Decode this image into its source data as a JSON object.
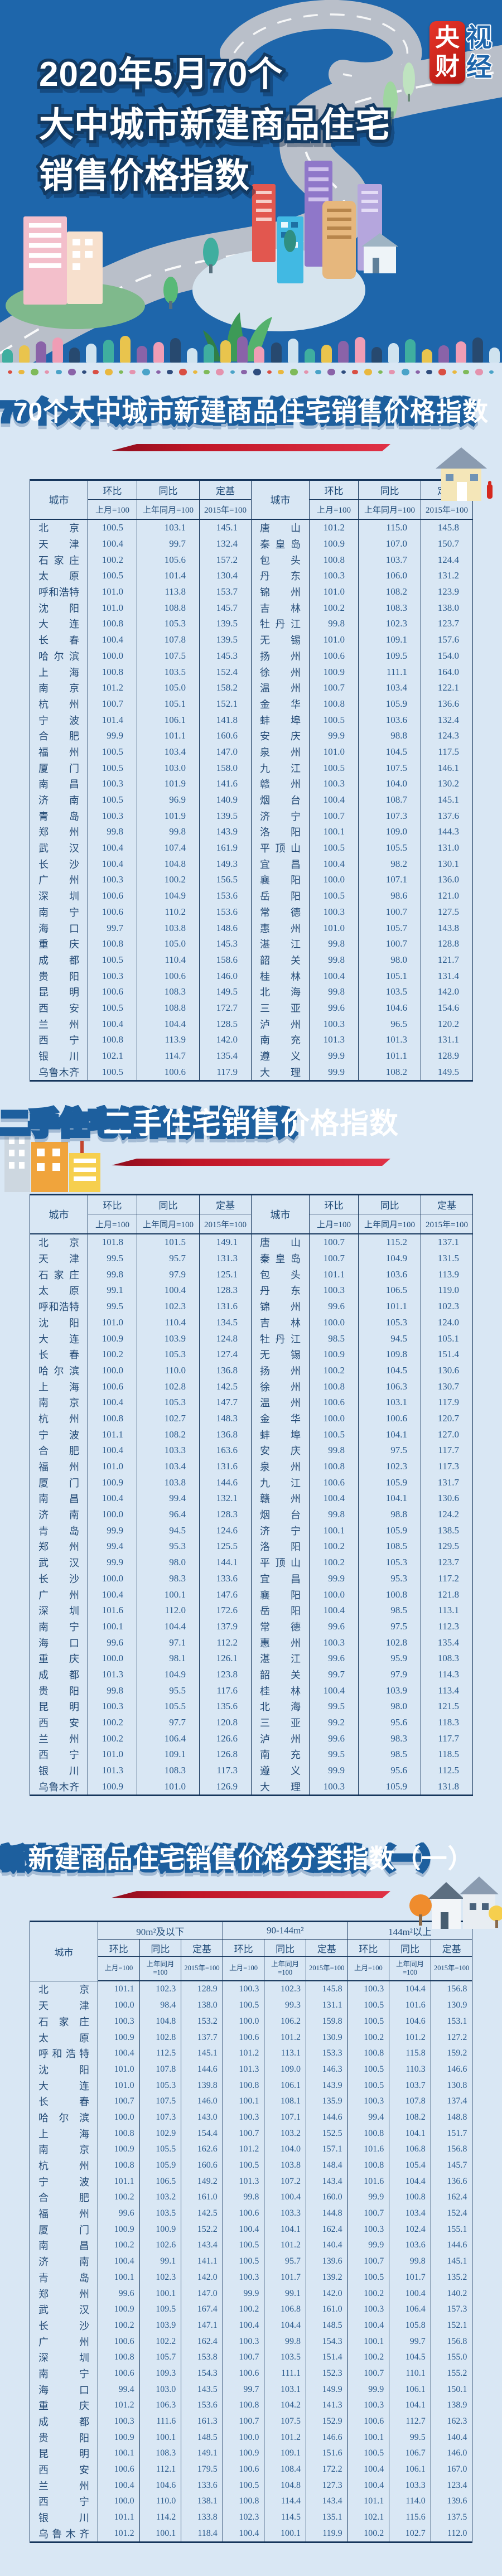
{
  "header": {
    "title_lines": [
      "2020年5月70个",
      "大中城市新建商品住宅",
      "销售价格指数"
    ],
    "logo": {
      "solid": [
        "央",
        "财"
      ],
      "outline": [
        "视",
        "经"
      ]
    }
  },
  "table_headers": {
    "city": "城市",
    "mom": "环比",
    "mom_sub": "上月=100",
    "yoy": "同比",
    "yoy_sub": "上年同月=100",
    "base": "定基",
    "base_sub": "2015年=100"
  },
  "sections": {
    "s1": {
      "title": "70个大中城市新建商品住宅销售价格指数"
    },
    "s2": {
      "title": "二手住宅销售价格指数"
    },
    "s3": {
      "title": "新建商品住宅销售价格分类指数（一）",
      "groups": [
        "90m²及以下",
        "90-144m²",
        "144m²以上"
      ]
    }
  },
  "decor": {
    "page_bg": "#d9e7f4",
    "header_blue": "#1e66ab",
    "navy": "#16365c",
    "accent_red": "#c01627",
    "road_gray": "#b9bfc9",
    "tree_colors": [
      "#3fae9f",
      "#e9c44d",
      "#8a63a8",
      "#ef9db5",
      "#27496f",
      "#cfe3ef"
    ],
    "dot_colors": [
      "#d94f43",
      "#e9b83f",
      "#7fba5a",
      "#e493ae",
      "#4aa3c8",
      "#8a63a8",
      "#2f4d7e"
    ]
  },
  "tables": {
    "t1_rows": [
      [
        "北京",
        "100.5",
        "103.1",
        "145.1",
        "唐山",
        "101.2",
        "115.0",
        "145.8"
      ],
      [
        "天津",
        "100.4",
        "99.7",
        "132.4",
        "秦皇岛",
        "100.9",
        "107.0",
        "150.7"
      ],
      [
        "石家庄",
        "100.2",
        "105.6",
        "157.2",
        "包头",
        "100.8",
        "103.7",
        "124.4"
      ],
      [
        "太原",
        "100.5",
        "101.4",
        "130.4",
        "丹东",
        "100.3",
        "106.0",
        "131.2"
      ],
      [
        "呼和浩特",
        "101.0",
        "113.8",
        "153.7",
        "锦州",
        "101.0",
        "108.2",
        "123.9"
      ],
      [
        "沈阳",
        "101.0",
        "108.8",
        "145.7",
        "吉林",
        "100.2",
        "108.3",
        "138.0"
      ],
      [
        "大连",
        "100.8",
        "105.3",
        "139.5",
        "牡丹江",
        "99.8",
        "102.3",
        "123.7"
      ],
      [
        "长春",
        "100.4",
        "107.8",
        "139.5",
        "无锡",
        "101.0",
        "109.1",
        "157.6"
      ],
      [
        "哈尔滨",
        "100.0",
        "107.5",
        "145.3",
        "扬州",
        "100.6",
        "109.5",
        "154.0"
      ],
      [
        "上海",
        "100.8",
        "103.5",
        "152.4",
        "徐州",
        "100.9",
        "111.1",
        "164.0"
      ],
      [
        "南京",
        "101.2",
        "105.0",
        "158.2",
        "温州",
        "100.7",
        "103.4",
        "122.1"
      ],
      [
        "杭州",
        "100.7",
        "105.1",
        "152.1",
        "金华",
        "100.8",
        "105.9",
        "136.6"
      ],
      [
        "宁波",
        "101.4",
        "106.1",
        "141.8",
        "蚌埠",
        "100.5",
        "103.6",
        "132.4"
      ],
      [
        "合肥",
        "99.9",
        "101.1",
        "160.6",
        "安庆",
        "99.9",
        "98.8",
        "124.3"
      ],
      [
        "福州",
        "100.5",
        "103.4",
        "147.0",
        "泉州",
        "101.0",
        "104.5",
        "117.5"
      ],
      [
        "厦门",
        "100.5",
        "103.0",
        "158.0",
        "九江",
        "100.5",
        "107.5",
        "146.1"
      ],
      [
        "南昌",
        "100.3",
        "101.9",
        "141.6",
        "赣州",
        "100.3",
        "104.0",
        "130.2"
      ],
      [
        "济南",
        "100.5",
        "96.9",
        "140.9",
        "烟台",
        "100.4",
        "108.7",
        "145.1"
      ],
      [
        "青岛",
        "100.3",
        "101.9",
        "139.5",
        "济宁",
        "100.7",
        "107.3",
        "137.6"
      ],
      [
        "郑州",
        "99.8",
        "99.8",
        "143.9",
        "洛阳",
        "100.1",
        "109.0",
        "144.3"
      ],
      [
        "武汉",
        "100.4",
        "107.4",
        "161.9",
        "平顶山",
        "100.5",
        "105.5",
        "131.0"
      ],
      [
        "长沙",
        "100.4",
        "104.8",
        "149.3",
        "宜昌",
        "100.4",
        "98.2",
        "130.1"
      ],
      [
        "广州",
        "100.3",
        "100.2",
        "156.5",
        "襄阳",
        "100.0",
        "107.1",
        "136.0"
      ],
      [
        "深圳",
        "100.6",
        "104.9",
        "153.6",
        "岳阳",
        "100.5",
        "98.6",
        "121.0"
      ],
      [
        "南宁",
        "100.6",
        "110.2",
        "153.6",
        "常德",
        "100.3",
        "100.7",
        "127.5"
      ],
      [
        "海口",
        "99.7",
        "103.8",
        "148.6",
        "惠州",
        "101.0",
        "105.7",
        "143.8"
      ],
      [
        "重庆",
        "100.8",
        "105.0",
        "145.3",
        "湛江",
        "99.8",
        "100.7",
        "128.8"
      ],
      [
        "成都",
        "100.5",
        "110.4",
        "158.6",
        "韶关",
        "99.8",
        "98.0",
        "121.7"
      ],
      [
        "贵阳",
        "100.3",
        "100.6",
        "146.0",
        "桂林",
        "100.4",
        "105.1",
        "131.4"
      ],
      [
        "昆明",
        "100.6",
        "108.3",
        "149.5",
        "北海",
        "99.8",
        "103.5",
        "142.0"
      ],
      [
        "西安",
        "100.5",
        "108.8",
        "172.7",
        "三亚",
        "99.6",
        "104.6",
        "154.6"
      ],
      [
        "兰州",
        "100.4",
        "104.4",
        "128.5",
        "泸州",
        "100.3",
        "96.5",
        "120.2"
      ],
      [
        "西宁",
        "100.8",
        "113.9",
        "142.0",
        "南充",
        "101.3",
        "101.3",
        "131.1"
      ],
      [
        "银川",
        "102.1",
        "114.7",
        "135.4",
        "遵义",
        "99.9",
        "101.1",
        "128.9"
      ],
      [
        "乌鲁木齐",
        "100.5",
        "100.6",
        "117.9",
        "大理",
        "99.9",
        "108.2",
        "149.5"
      ]
    ],
    "t2_rows": [
      [
        "北京",
        "101.8",
        "101.5",
        "149.1",
        "唐山",
        "100.7",
        "115.2",
        "137.1"
      ],
      [
        "天津",
        "99.5",
        "95.7",
        "131.3",
        "秦皇岛",
        "100.7",
        "104.9",
        "131.5"
      ],
      [
        "石家庄",
        "99.8",
        "97.9",
        "125.1",
        "包头",
        "101.1",
        "103.6",
        "113.9"
      ],
      [
        "太原",
        "99.1",
        "100.4",
        "128.3",
        "丹东",
        "100.3",
        "106.5",
        "119.0"
      ],
      [
        "呼和浩特",
        "99.5",
        "102.3",
        "131.6",
        "锦州",
        "99.6",
        "101.1",
        "102.3"
      ],
      [
        "沈阳",
        "101.0",
        "110.4",
        "134.5",
        "吉林",
        "100.0",
        "105.3",
        "124.0"
      ],
      [
        "大连",
        "100.9",
        "103.9",
        "124.8",
        "牡丹江",
        "98.5",
        "94.5",
        "105.1"
      ],
      [
        "长春",
        "100.2",
        "105.3",
        "127.4",
        "无锡",
        "100.9",
        "109.8",
        "151.4"
      ],
      [
        "哈尔滨",
        "100.0",
        "110.0",
        "136.8",
        "扬州",
        "100.2",
        "104.5",
        "130.6"
      ],
      [
        "上海",
        "100.6",
        "102.8",
        "142.5",
        "徐州",
        "100.8",
        "106.3",
        "130.7"
      ],
      [
        "南京",
        "100.4",
        "105.3",
        "147.7",
        "温州",
        "100.6",
        "103.1",
        "117.9"
      ],
      [
        "杭州",
        "100.8",
        "102.7",
        "148.3",
        "金华",
        "100.0",
        "100.6",
        "120.7"
      ],
      [
        "宁波",
        "101.1",
        "108.2",
        "136.8",
        "蚌埠",
        "100.5",
        "104.1",
        "127.0"
      ],
      [
        "合肥",
        "100.4",
        "103.3",
        "163.6",
        "安庆",
        "99.8",
        "97.5",
        "117.7"
      ],
      [
        "福州",
        "101.0",
        "103.4",
        "131.6",
        "泉州",
        "100.8",
        "102.3",
        "117.3"
      ],
      [
        "厦门",
        "100.9",
        "103.8",
        "144.6",
        "九江",
        "100.6",
        "105.9",
        "131.7"
      ],
      [
        "南昌",
        "100.4",
        "99.4",
        "132.1",
        "赣州",
        "100.4",
        "104.1",
        "130.6"
      ],
      [
        "济南",
        "100.0",
        "96.4",
        "128.3",
        "烟台",
        "99.8",
        "98.8",
        "124.2"
      ],
      [
        "青岛",
        "99.9",
        "94.5",
        "124.6",
        "济宁",
        "100.1",
        "105.9",
        "138.5"
      ],
      [
        "郑州",
        "99.4",
        "95.3",
        "125.5",
        "洛阳",
        "100.2",
        "108.5",
        "129.5"
      ],
      [
        "武汉",
        "99.9",
        "98.0",
        "144.1",
        "平顶山",
        "100.2",
        "105.3",
        "123.7"
      ],
      [
        "长沙",
        "100.0",
        "98.3",
        "133.6",
        "宜昌",
        "99.9",
        "95.3",
        "117.2"
      ],
      [
        "广州",
        "100.4",
        "100.1",
        "147.6",
        "襄阳",
        "100.0",
        "100.8",
        "121.8"
      ],
      [
        "深圳",
        "101.6",
        "112.0",
        "172.6",
        "岳阳",
        "100.4",
        "98.5",
        "113.1"
      ],
      [
        "南宁",
        "100.1",
        "104.4",
        "137.9",
        "常德",
        "99.6",
        "97.5",
        "112.3"
      ],
      [
        "海口",
        "99.6",
        "97.1",
        "112.2",
        "惠州",
        "100.3",
        "102.8",
        "135.4"
      ],
      [
        "重庆",
        "100.0",
        "98.1",
        "126.1",
        "湛江",
        "99.6",
        "95.9",
        "108.3"
      ],
      [
        "成都",
        "101.3",
        "104.9",
        "123.8",
        "韶关",
        "99.7",
        "97.9",
        "114.3"
      ],
      [
        "贵阳",
        "99.8",
        "95.5",
        "117.6",
        "桂林",
        "100.4",
        "103.9",
        "113.4"
      ],
      [
        "昆明",
        "100.3",
        "105.5",
        "135.6",
        "北海",
        "99.5",
        "98.0",
        "121.5"
      ],
      [
        "西安",
        "100.2",
        "97.7",
        "120.8",
        "三亚",
        "99.2",
        "95.6",
        "118.3"
      ],
      [
        "兰州",
        "100.2",
        "106.4",
        "126.6",
        "泸州",
        "99.6",
        "98.3",
        "117.7"
      ],
      [
        "西宁",
        "101.0",
        "109.1",
        "126.8",
        "南充",
        "99.5",
        "98.5",
        "118.5"
      ],
      [
        "银川",
        "101.3",
        "108.3",
        "117.3",
        "遵义",
        "99.9",
        "95.6",
        "112.5"
      ],
      [
        "乌鲁木齐",
        "100.9",
        "101.0",
        "126.9",
        "大理",
        "100.3",
        "105.9",
        "131.8"
      ]
    ],
    "t3_rows": [
      [
        "北京",
        "101.1",
        "102.3",
        "128.9",
        "100.3",
        "102.3",
        "145.8",
        "100.3",
        "104.4",
        "156.8"
      ],
      [
        "天津",
        "100.0",
        "98.4",
        "138.0",
        "100.5",
        "99.3",
        "131.1",
        "100.5",
        "101.6",
        "130.9"
      ],
      [
        "石家庄",
        "100.3",
        "104.8",
        "153.2",
        "100.0",
        "106.2",
        "159.8",
        "100.5",
        "104.6",
        "153.1"
      ],
      [
        "太原",
        "100.9",
        "102.8",
        "137.7",
        "100.6",
        "101.2",
        "130.9",
        "100.2",
        "101.2",
        "127.2"
      ],
      [
        "呼和浩特",
        "100.4",
        "112.5",
        "145.1",
        "101.2",
        "113.1",
        "153.3",
        "100.8",
        "115.8",
        "159.2"
      ],
      [
        "沈阳",
        "101.0",
        "107.8",
        "144.6",
        "101.3",
        "109.0",
        "146.3",
        "100.5",
        "110.3",
        "146.6"
      ],
      [
        "大连",
        "101.0",
        "105.3",
        "139.8",
        "100.8",
        "106.1",
        "143.9",
        "100.5",
        "103.7",
        "130.8"
      ],
      [
        "长春",
        "100.7",
        "107.5",
        "146.0",
        "100.1",
        "108.1",
        "135.9",
        "100.3",
        "107.8",
        "137.4"
      ],
      [
        "哈尔滨",
        "100.0",
        "107.3",
        "143.0",
        "100.3",
        "107.1",
        "144.6",
        "99.4",
        "108.2",
        "148.8"
      ],
      [
        "上海",
        "100.8",
        "102.9",
        "154.4",
        "100.7",
        "103.2",
        "152.5",
        "100.8",
        "104.1",
        "151.7"
      ],
      [
        "南京",
        "100.9",
        "105.5",
        "162.6",
        "101.2",
        "104.0",
        "157.1",
        "101.6",
        "106.8",
        "156.8"
      ],
      [
        "杭州",
        "100.8",
        "105.9",
        "160.6",
        "100.5",
        "103.8",
        "148.4",
        "100.8",
        "105.4",
        "145.7"
      ],
      [
        "宁波",
        "101.1",
        "106.5",
        "149.2",
        "101.3",
        "107.2",
        "143.4",
        "101.6",
        "104.4",
        "136.6"
      ],
      [
        "合肥",
        "100.2",
        "103.2",
        "161.0",
        "99.8",
        "100.4",
        "160.0",
        "99.9",
        "100.8",
        "162.4"
      ],
      [
        "福州",
        "99.6",
        "103.5",
        "142.5",
        "100.6",
        "103.3",
        "144.8",
        "100.7",
        "103.4",
        "152.4"
      ],
      [
        "厦门",
        "100.9",
        "100.9",
        "152.2",
        "100.4",
        "104.1",
        "162.4",
        "100.3",
        "102.4",
        "155.1"
      ],
      [
        "南昌",
        "100.2",
        "102.6",
        "143.4",
        "100.5",
        "101.2",
        "140.4",
        "99.9",
        "103.6",
        "144.6"
      ],
      [
        "济南",
        "100.4",
        "99.1",
        "141.1",
        "100.5",
        "95.7",
        "139.6",
        "100.7",
        "99.8",
        "145.1"
      ],
      [
        "青岛",
        "100.1",
        "102.3",
        "142.0",
        "100.3",
        "101.7",
        "139.2",
        "100.5",
        "101.7",
        "135.2"
      ],
      [
        "郑州",
        "99.6",
        "100.1",
        "147.0",
        "99.9",
        "99.1",
        "142.0",
        "100.2",
        "100.4",
        "140.2"
      ],
      [
        "武汉",
        "100.9",
        "109.5",
        "167.4",
        "100.2",
        "106.8",
        "161.0",
        "100.3",
        "106.4",
        "157.3"
      ],
      [
        "长沙",
        "100.2",
        "103.9",
        "147.1",
        "100.4",
        "104.4",
        "148.5",
        "100.4",
        "105.8",
        "152.1"
      ],
      [
        "广州",
        "100.6",
        "102.2",
        "162.4",
        "100.3",
        "99.8",
        "154.3",
        "100.1",
        "99.7",
        "156.8"
      ],
      [
        "深圳",
        "100.8",
        "105.7",
        "153.8",
        "100.7",
        "103.5",
        "151.4",
        "100.2",
        "104.5",
        "155.0"
      ],
      [
        "南宁",
        "100.6",
        "109.3",
        "154.3",
        "100.6",
        "111.1",
        "152.3",
        "100.7",
        "110.1",
        "155.2"
      ],
      [
        "海口",
        "99.4",
        "103.0",
        "143.5",
        "99.7",
        "103.1",
        "149.9",
        "99.9",
        "106.1",
        "150.1"
      ],
      [
        "重庆",
        "101.2",
        "106.3",
        "153.6",
        "100.8",
        "104.2",
        "141.3",
        "100.3",
        "104.1",
        "138.9"
      ],
      [
        "成都",
        "100.3",
        "111.6",
        "161.3",
        "100.7",
        "107.5",
        "152.9",
        "100.6",
        "112.7",
        "162.3"
      ],
      [
        "贵阳",
        "100.9",
        "100.1",
        "148.5",
        "100.0",
        "101.2",
        "146.6",
        "100.1",
        "99.5",
        "140.4"
      ],
      [
        "昆明",
        "100.1",
        "108.3",
        "149.1",
        "100.9",
        "109.1",
        "151.6",
        "100.5",
        "106.7",
        "146.0"
      ],
      [
        "西安",
        "100.6",
        "112.1",
        "179.5",
        "100.6",
        "108.4",
        "172.2",
        "100.4",
        "106.1",
        "167.0"
      ],
      [
        "兰州",
        "100.4",
        "104.6",
        "133.6",
        "100.5",
        "104.8",
        "127.3",
        "100.4",
        "103.3",
        "123.4"
      ],
      [
        "西宁",
        "100.0",
        "110.0",
        "138.1",
        "100.8",
        "114.4",
        "143.4",
        "101.1",
        "114.0",
        "139.6"
      ],
      [
        "银川",
        "101.1",
        "114.2",
        "133.8",
        "102.3",
        "114.5",
        "135.1",
        "102.1",
        "115.6",
        "137.5"
      ],
      [
        "乌鲁木齐",
        "101.2",
        "100.1",
        "118.4",
        "100.4",
        "100.1",
        "119.9",
        "100.2",
        "102.7",
        "112.0"
      ]
    ]
  }
}
